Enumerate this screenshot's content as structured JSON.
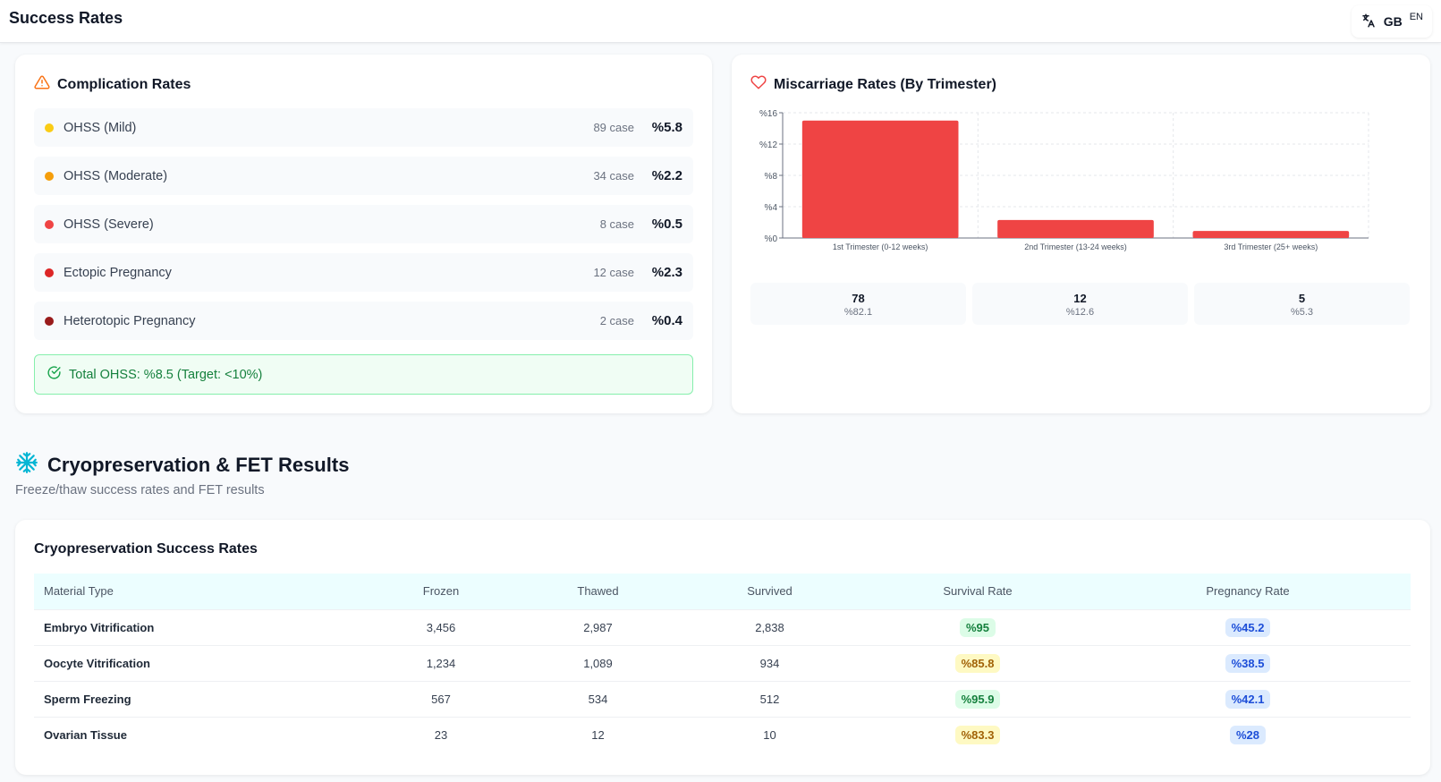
{
  "header": {
    "title": "Success Rates",
    "lang_code": "GB",
    "lang_sub": "EN"
  },
  "complication": {
    "title": "Complication Rates",
    "items": [
      {
        "label": "OHSS (Mild)",
        "count": "89 case",
        "pct": "%5.8",
        "color": "#facc15"
      },
      {
        "label": "OHSS (Moderate)",
        "count": "34 case",
        "pct": "%2.2",
        "color": "#f59e0b"
      },
      {
        "label": "OHSS (Severe)",
        "count": "8 case",
        "pct": "%0.5",
        "color": "#ef4444"
      },
      {
        "label": "Ectopic Pregnancy",
        "count": "12 case",
        "pct": "%2.3",
        "color": "#dc2626"
      },
      {
        "label": "Heterotopic Pregnancy",
        "count": "2 case",
        "pct": "%0.4",
        "color": "#991b1b"
      }
    ],
    "total": "Total OHSS: %8.5 (Target: <10%)"
  },
  "miscarriage": {
    "title": "Miscarriage Rates (By Trimester)",
    "stats": [
      {
        "n": "78",
        "p": "%82.1"
      },
      {
        "n": "12",
        "p": "%12.6"
      },
      {
        "n": "5",
        "p": "%5.3"
      }
    ]
  },
  "chart_data": {
    "type": "bar",
    "categories": [
      "1st Trimester (0-12 weeks)",
      "2nd Trimester (13-24 weeks)",
      "3rd Trimester (25+ weeks)"
    ],
    "values": [
      15,
      2.3,
      0.9
    ],
    "ylim": [
      0,
      16
    ],
    "yticks": [
      0,
      4,
      8,
      12,
      16
    ],
    "ytick_labels": [
      "%0",
      "%4",
      "%8",
      "%12",
      "%16"
    ],
    "grid": true,
    "bar_color": "#ef4444"
  },
  "section": {
    "title": "Cryopreservation & FET Results",
    "description": "Freeze/thaw success rates and FET results"
  },
  "cryo": {
    "title": "Cryopreservation Success Rates",
    "headers": [
      "Material Type",
      "Frozen",
      "Thawed",
      "Survived",
      "Survival Rate",
      "Pregnancy Rate"
    ],
    "rows": [
      {
        "type": "Embryo Vitrification",
        "frozen": "3,456",
        "thawed": "2,987",
        "survived": "2,838",
        "survival": "%95",
        "survival_tone": "green",
        "pregnancy": "%45.2"
      },
      {
        "type": "Oocyte Vitrification",
        "frozen": "1,234",
        "thawed": "1,089",
        "survived": "934",
        "survival": "%85.8",
        "survival_tone": "yellow",
        "pregnancy": "%38.5"
      },
      {
        "type": "Sperm Freezing",
        "frozen": "567",
        "thawed": "534",
        "survived": "512",
        "survival": "%95.9",
        "survival_tone": "green",
        "pregnancy": "%42.1"
      },
      {
        "type": "Ovarian Tissue",
        "frozen": "23",
        "thawed": "12",
        "survived": "10",
        "survival": "%83.3",
        "survival_tone": "yellow",
        "pregnancy": "%28"
      }
    ]
  }
}
